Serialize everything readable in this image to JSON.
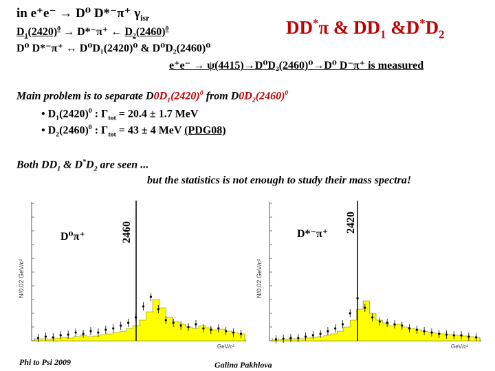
{
  "header": {
    "reaction": "in e⁺e⁻ → D⁰ D*⁻π⁺ γ",
    "reaction_sub": "isr",
    "line1_a": "D",
    "line1_a_sub": "1",
    "line1_b": "(2420)",
    "line1_b_sup": "0",
    "line1_c": " → D*⁻π⁺ ← ",
    "line1_d": "D",
    "line1_d_sub": "2",
    "line1_e": "(2460)",
    "line1_e_sup": "0",
    "line2": "D⁰ D*⁻π⁺  ↔  D⁰D₁(2420)⁰ & D⁰D₂(2460)⁰",
    "title_a": "DD",
    "title_b": "π & DD",
    "title_c": " &D",
    "title_sup": "*",
    "title_sub1": "1",
    "title_sub2": "2",
    "measured": "e⁺e⁻ → ψ(4415)→D⁰D₂(2460)⁰→D⁰ D⁻π⁺ is measured"
  },
  "body": {
    "problem_a": "Main problem is to separate D",
    "problem_b": "D",
    "problem_b_sub": "1",
    "problem_c": "(2420)",
    "problem_c_sup": "0",
    "problem_d": " from  D",
    "problem_e": "D",
    "problem_e_sub": "2",
    "problem_f": "(2460)",
    "problem_f_sup": "0",
    "bullet1_a": "• D",
    "bullet1_sub": "1",
    "bullet1_b": "(2420)",
    "bullet1_sup": "0",
    "bullet1_c": " : Γ",
    "bullet1_tot": "tot",
    "bullet1_d": " = 20.4 ± 1.7 MeV",
    "bullet2_a": "• D",
    "bullet2_sub": "2",
    "bullet2_b": "(2460)",
    "bullet2_sup": "0",
    "bullet2_c": " : Γ",
    "bullet2_tot": "tot",
    "bullet2_d": " = 43 ± 4 MeV  ",
    "bullet2_pdg": "(PDG08)",
    "both_a": "Both DD",
    "both_sub1": "1",
    "both_b": " & D",
    "both_sup": "*",
    "both_c": "D",
    "both_sub2": "2",
    "both_d": " are seen ...",
    "stats": "but  the statistics is not enough to study their mass spectra!"
  },
  "plots": {
    "left": {
      "label": "D⁰π⁺",
      "marker": "2460",
      "ylabel": "N/0.02 GeV/c²",
      "xunit": "GeV/c²"
    },
    "right": {
      "label": "D*⁻π⁺",
      "marker": "2420",
      "ylabel": "N/0.02 GeV/c²",
      "xunit": "GeV/c²"
    }
  },
  "footer": {
    "left": "Phi to Psi 2009",
    "center": "Galina Pakhlova"
  },
  "colors": {
    "accent": "#c00000",
    "histogram_fill": "#ffff00",
    "axes": "#555555"
  }
}
